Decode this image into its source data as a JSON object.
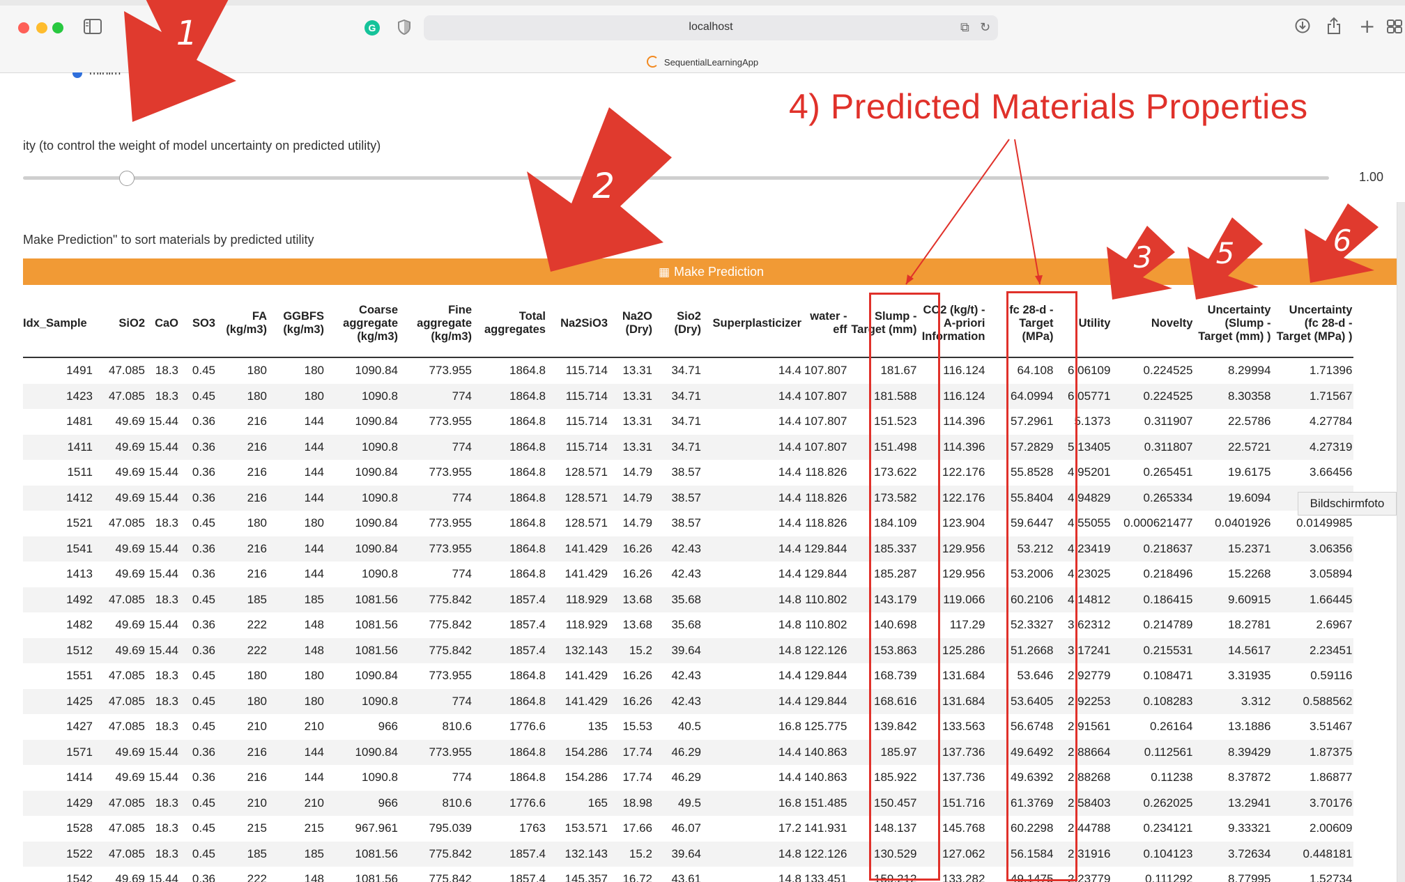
{
  "window": {
    "url": "localhost",
    "tab_title": "SequentialLearningApp",
    "icons": [
      "sidebar-icon",
      "back-icon",
      "grammarly-icon",
      "shield-icon",
      "translate-icon",
      "reload-icon",
      "download-icon",
      "share-icon",
      "new-tab-icon",
      "tabs-overview-icon"
    ]
  },
  "controls": {
    "radio_label": "minim",
    "slider_label": "ity (to control the weight of model uncertainty on predicted utility)",
    "slider_value": "1.00",
    "make_prediction_hint": "Make Prediction\" to sort materials by predicted utility",
    "make_prediction_button": "Make Prediction",
    "button_color": "#f19a35"
  },
  "annotations": {
    "title": "4) Predicted Materials Properties",
    "arrow_numbers": [
      "1",
      "2",
      "3",
      "5",
      "6"
    ],
    "color": "#e0312a"
  },
  "tooltip": "Bildschirmfoto",
  "table": {
    "headers": [
      "Idx_Sample",
      "SiO2",
      "CaO",
      "SO3",
      "FA (kg/m3)",
      "GGBFS (kg/m3)",
      "Coarse aggregate (kg/m3)",
      "Fine aggregate (kg/m3)",
      "Total aggregates",
      "Na2SiO3",
      "Na2O (Dry)",
      "Sio2 (Dry)",
      "Superplasticizer",
      "water - eff",
      "Slump - Target (mm)",
      "CO2 (kg/t) - A-priori Information",
      "fc 28-d - Target (MPa)",
      "Utility",
      "Novelty",
      "Uncertainty (Slump - Target (mm) )",
      "Uncertainty (fc 28-d - Target (MPa) )"
    ],
    "rows": [
      [
        "1491",
        "47.085",
        "18.3",
        "0.45",
        "180",
        "180",
        "1090.84",
        "773.955",
        "1864.8",
        "115.714",
        "13.31",
        "34.71",
        "14.4",
        "107.807",
        "181.67",
        "116.124",
        "64.108",
        "6.06109",
        "0.224525",
        "8.29994",
        "1.71396"
      ],
      [
        "1423",
        "47.085",
        "18.3",
        "0.45",
        "180",
        "180",
        "1090.8",
        "774",
        "1864.8",
        "115.714",
        "13.31",
        "34.71",
        "14.4",
        "107.807",
        "181.588",
        "116.124",
        "64.0994",
        "6.05771",
        "0.224525",
        "8.30358",
        "1.71567"
      ],
      [
        "1481",
        "49.69",
        "15.44",
        "0.36",
        "216",
        "144",
        "1090.84",
        "773.955",
        "1864.8",
        "115.714",
        "13.31",
        "34.71",
        "14.4",
        "107.807",
        "151.523",
        "114.396",
        "57.2961",
        "5.1373",
        "0.311907",
        "22.5786",
        "4.27784"
      ],
      [
        "1411",
        "49.69",
        "15.44",
        "0.36",
        "216",
        "144",
        "1090.8",
        "774",
        "1864.8",
        "115.714",
        "13.31",
        "34.71",
        "14.4",
        "107.807",
        "151.498",
        "114.396",
        "57.2829",
        "5.13405",
        "0.311807",
        "22.5721",
        "4.27319"
      ],
      [
        "1511",
        "49.69",
        "15.44",
        "0.36",
        "216",
        "144",
        "1090.84",
        "773.955",
        "1864.8",
        "128.571",
        "14.79",
        "38.57",
        "14.4",
        "118.826",
        "173.622",
        "122.176",
        "55.8528",
        "4.95201",
        "0.265451",
        "19.6175",
        "3.66456"
      ],
      [
        "1412",
        "49.69",
        "15.44",
        "0.36",
        "216",
        "144",
        "1090.8",
        "774",
        "1864.8",
        "128.571",
        "14.79",
        "38.57",
        "14.4",
        "118.826",
        "173.582",
        "122.176",
        "55.8404",
        "4.94829",
        "0.265334",
        "19.6094",
        "3.66244"
      ],
      [
        "1521",
        "47.085",
        "18.3",
        "0.45",
        "180",
        "180",
        "1090.84",
        "773.955",
        "1864.8",
        "128.571",
        "14.79",
        "38.57",
        "14.4",
        "118.826",
        "184.109",
        "123.904",
        "59.6447",
        "4.55055",
        "0.000621477",
        "0.0401926",
        "0.0149985"
      ],
      [
        "1541",
        "49.69",
        "15.44",
        "0.36",
        "216",
        "144",
        "1090.84",
        "773.955",
        "1864.8",
        "141.429",
        "16.26",
        "42.43",
        "14.4",
        "129.844",
        "185.337",
        "129.956",
        "53.212",
        "4.23419",
        "0.218637",
        "15.2371",
        "3.06356"
      ],
      [
        "1413",
        "49.69",
        "15.44",
        "0.36",
        "216",
        "144",
        "1090.8",
        "774",
        "1864.8",
        "141.429",
        "16.26",
        "42.43",
        "14.4",
        "129.844",
        "185.287",
        "129.956",
        "53.2006",
        "4.23025",
        "0.218496",
        "15.2268",
        "3.05894"
      ],
      [
        "1492",
        "47.085",
        "18.3",
        "0.45",
        "185",
        "185",
        "1081.56",
        "775.842",
        "1857.4",
        "118.929",
        "13.68",
        "35.68",
        "14.8",
        "110.802",
        "143.179",
        "119.066",
        "60.2106",
        "4.14812",
        "0.186415",
        "9.60915",
        "1.66445"
      ],
      [
        "1482",
        "49.69",
        "15.44",
        "0.36",
        "222",
        "148",
        "1081.56",
        "775.842",
        "1857.4",
        "118.929",
        "13.68",
        "35.68",
        "14.8",
        "110.802",
        "140.698",
        "117.29",
        "52.3327",
        "3.62312",
        "0.214789",
        "18.2781",
        "2.6967"
      ],
      [
        "1512",
        "49.69",
        "15.44",
        "0.36",
        "222",
        "148",
        "1081.56",
        "775.842",
        "1857.4",
        "132.143",
        "15.2",
        "39.64",
        "14.8",
        "122.126",
        "153.863",
        "125.286",
        "51.2668",
        "3.17241",
        "0.215531",
        "14.5617",
        "2.23451"
      ],
      [
        "1551",
        "47.085",
        "18.3",
        "0.45",
        "180",
        "180",
        "1090.84",
        "773.955",
        "1864.8",
        "141.429",
        "16.26",
        "42.43",
        "14.4",
        "129.844",
        "168.739",
        "131.684",
        "53.646",
        "2.92779",
        "0.108471",
        "3.31935",
        "0.59116"
      ],
      [
        "1425",
        "47.085",
        "18.3",
        "0.45",
        "180",
        "180",
        "1090.8",
        "774",
        "1864.8",
        "141.429",
        "16.26",
        "42.43",
        "14.4",
        "129.844",
        "168.616",
        "131.684",
        "53.6405",
        "2.92253",
        "0.108283",
        "3.312",
        "0.588562"
      ],
      [
        "1427",
        "47.085",
        "18.3",
        "0.45",
        "210",
        "210",
        "966",
        "810.6",
        "1776.6",
        "135",
        "15.53",
        "40.5",
        "16.8",
        "125.775",
        "139.842",
        "133.563",
        "56.6748",
        "2.91561",
        "0.26164",
        "13.1886",
        "3.51467"
      ],
      [
        "1571",
        "49.69",
        "15.44",
        "0.36",
        "216",
        "144",
        "1090.84",
        "773.955",
        "1864.8",
        "154.286",
        "17.74",
        "46.29",
        "14.4",
        "140.863",
        "185.97",
        "137.736",
        "49.6492",
        "2.88664",
        "0.112561",
        "8.39429",
        "1.87375"
      ],
      [
        "1414",
        "49.69",
        "15.44",
        "0.36",
        "216",
        "144",
        "1090.8",
        "774",
        "1864.8",
        "154.286",
        "17.74",
        "46.29",
        "14.4",
        "140.863",
        "185.922",
        "137.736",
        "49.6392",
        "2.88268",
        "0.11238",
        "8.37872",
        "1.86877"
      ],
      [
        "1429",
        "47.085",
        "18.3",
        "0.45",
        "210",
        "210",
        "966",
        "810.6",
        "1776.6",
        "165",
        "18.98",
        "49.5",
        "16.8",
        "151.485",
        "150.457",
        "151.716",
        "61.3769",
        "2.58403",
        "0.262025",
        "13.2941",
        "3.70176"
      ],
      [
        "1528",
        "47.085",
        "18.3",
        "0.45",
        "215",
        "215",
        "967.961",
        "795.039",
        "1763",
        "153.571",
        "17.66",
        "46.07",
        "17.2",
        "141.931",
        "148.137",
        "145.768",
        "60.2298",
        "2.44788",
        "0.234121",
        "9.33321",
        "2.00609"
      ],
      [
        "1522",
        "47.085",
        "18.3",
        "0.45",
        "185",
        "185",
        "1081.56",
        "775.842",
        "1857.4",
        "132.143",
        "15.2",
        "39.64",
        "14.8",
        "122.126",
        "130.529",
        "127.062",
        "56.1584",
        "2.31916",
        "0.104123",
        "3.72634",
        "0.448181"
      ],
      [
        "1542",
        "49.69",
        "15.44",
        "0.36",
        "222",
        "148",
        "1081.56",
        "775.842",
        "1857.4",
        "145.357",
        "16.72",
        "43.61",
        "14.8",
        "133.451",
        "159.212",
        "133.282",
        "49.1475",
        "2.23779",
        "0.111292",
        "8.77995",
        "1.52734"
      ]
    ]
  }
}
